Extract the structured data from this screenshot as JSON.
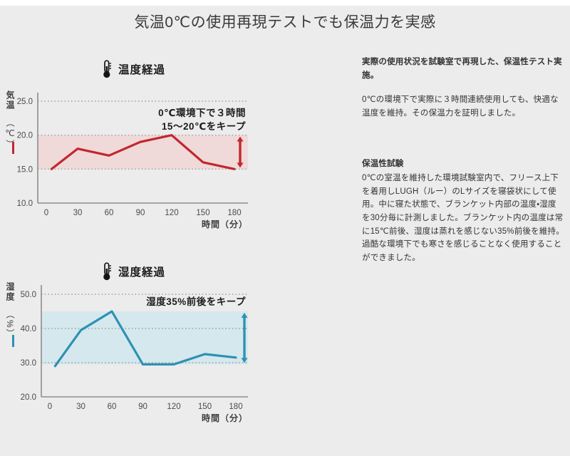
{
  "page": {
    "title": "気温0℃の使用再現テストでも保温力を実感"
  },
  "right_column": {
    "lead": "実際の使用状況を試験室で再現した、保温性テスト実施。",
    "paragraph1": "0℃の環境下で実際に３時間連続使用しても、快適な温度を維持。その保温力を証明しました。",
    "section_heading": "保温性試験",
    "paragraph2": "0℃の室温を維持した環境試験室内で、フリース上下を着用しLUGH（ルー）のLサイズを寝袋状にして使用。中に寝た状態で、ブランケット内部の温度・湿度を30分毎に計測しました。ブランケット内の温度は常に15℃前後、湿度は蒸れを感じない35%前後を維持。過酷な環境下でも寒さを感じることなく使用することができました。"
  },
  "chart_data": [
    {
      "type": "line",
      "title": "温度経過",
      "icon": "thermometer-icon",
      "y_axis_label": "気温",
      "y_axis_unit": "（℃）",
      "xlabel": "時間（分）",
      "x": [
        5,
        30,
        60,
        90,
        120,
        150,
        180
      ],
      "series": [
        {
          "name": "気温",
          "values": [
            15,
            18,
            17,
            19,
            20,
            16,
            15
          ]
        }
      ],
      "x_ticks": [
        "0",
        "30",
        "60",
        "90",
        "120",
        "150",
        "180"
      ],
      "y_ticks": [
        "25.0",
        "20.0",
        "15.0",
        "10.0"
      ],
      "ylim": [
        10,
        26.3
      ],
      "xlim": [
        -8,
        193
      ],
      "band": [
        15,
        20
      ],
      "band_meaning": "15〜20℃をキープした範囲",
      "annotation_lines": [
        "0℃環境下で３時間",
        "15〜20℃をキープ"
      ],
      "line_color": "#c1272d",
      "band_color": "#f0d9d9",
      "grid": "dotted-horizontal",
      "legend_position": "left-axis"
    },
    {
      "type": "line",
      "title": "湿度経過",
      "icon": "thermometer-icon",
      "y_axis_label": "湿度",
      "y_axis_unit": "（%）",
      "xlabel": "時間（分）",
      "x": [
        5,
        30,
        60,
        90,
        120,
        150,
        180
      ],
      "series": [
        {
          "name": "湿度",
          "values": [
            29,
            39.5,
            45,
            29.5,
            29.5,
            32.5,
            31.5
          ]
        }
      ],
      "x_ticks": [
        "0",
        "30",
        "60",
        "90",
        "120",
        "150",
        "180"
      ],
      "y_ticks": [
        "50.0",
        "40.0",
        "30.0",
        "20.0"
      ],
      "ylim": [
        20,
        52.7
      ],
      "xlim": [
        -8,
        192
      ],
      "band": [
        29.5,
        45
      ],
      "band_meaning": "湿度35%前後をキープした範囲",
      "annotation_lines": [
        "湿度35%前後をキープ"
      ],
      "line_color": "#2d91b2",
      "band_color": "#d5e8ee",
      "grid": "dotted-horizontal",
      "legend_position": "left-axis"
    }
  ]
}
